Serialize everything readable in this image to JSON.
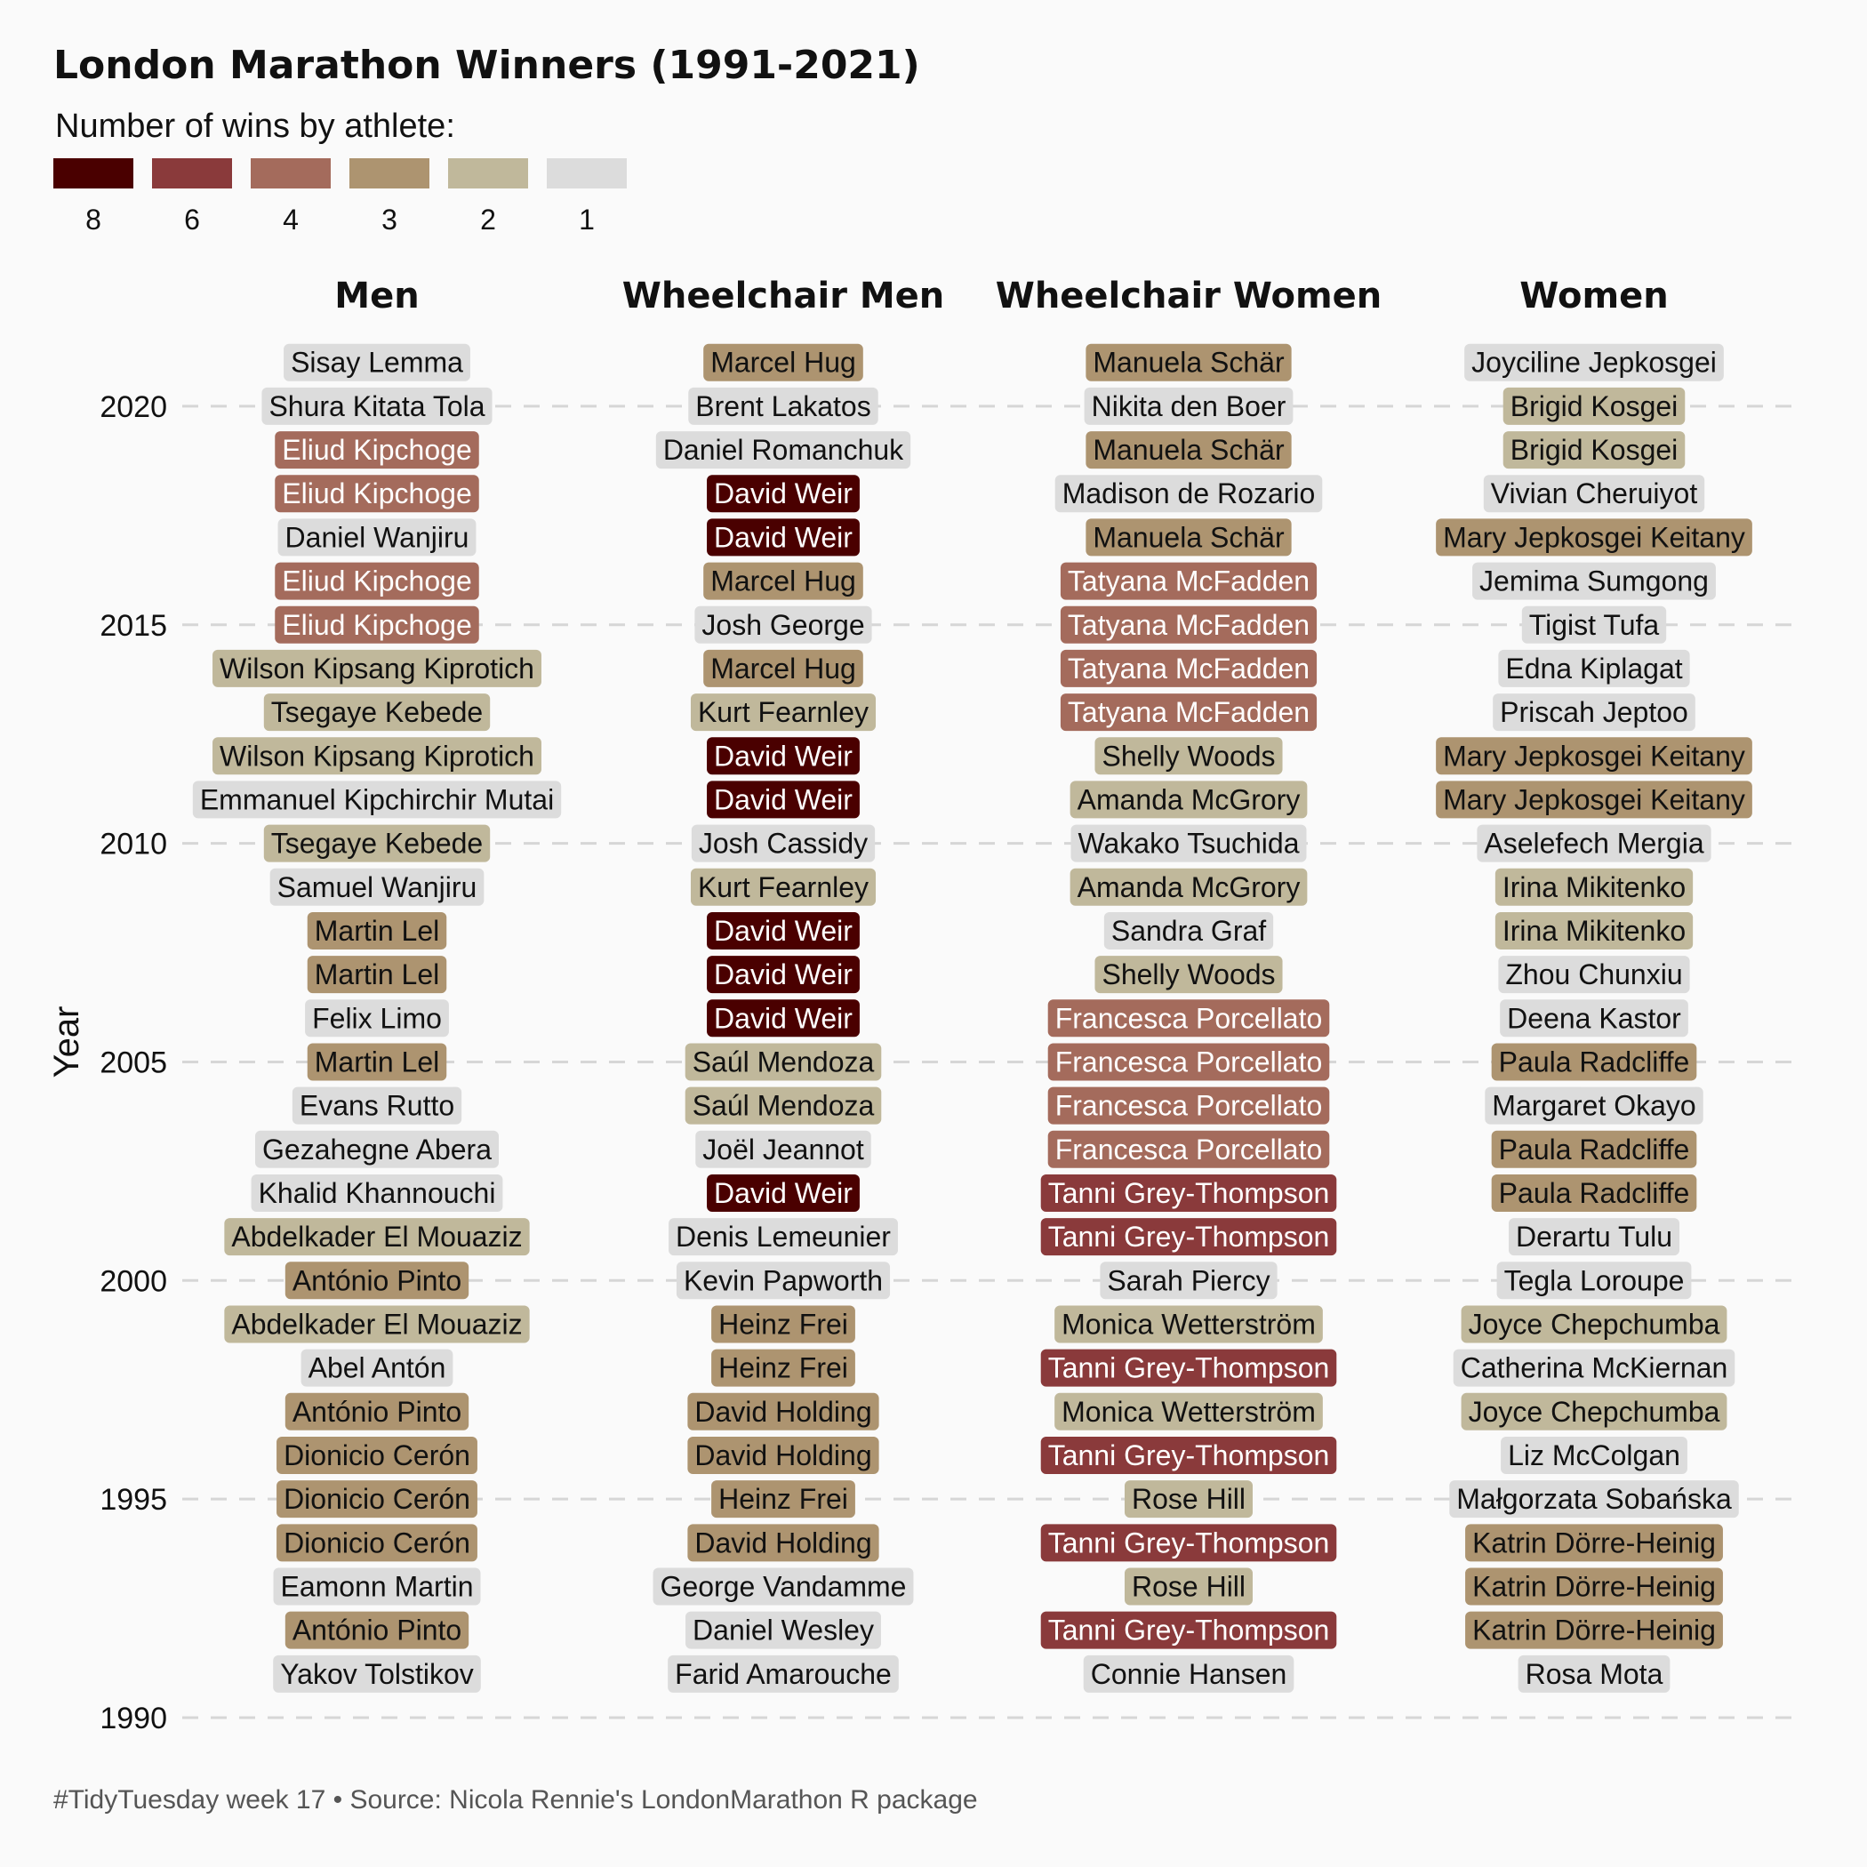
{
  "chart_data": {
    "type": "table",
    "title": "London Marathon Winners (1991-2021)",
    "legend_title": "Number of wins by athlete:",
    "legend": [
      {
        "label": "8",
        "color": "#4a0000"
      },
      {
        "label": "6",
        "color": "#8a3a3b"
      },
      {
        "label": "4",
        "color": "#a46b5c"
      },
      {
        "label": "3",
        "color": "#ad9470"
      },
      {
        "label": "2",
        "color": "#c0b89b"
      },
      {
        "label": "1",
        "color": "#dcdcdc"
      }
    ],
    "ylabel": "Year",
    "y_ticks": [
      "1990",
      "1995",
      "2000",
      "2005",
      "2010",
      "2015",
      "2020"
    ],
    "ylim": [
      1990,
      2021
    ],
    "caption": "#TidyTuesday week 17  •  Source: Nicola Rennie's LondonMarathon R package",
    "years": [
      2021,
      2020,
      2019,
      2018,
      2017,
      2016,
      2015,
      2014,
      2013,
      2012,
      2011,
      2010,
      2009,
      2008,
      2007,
      2006,
      2005,
      2004,
      2003,
      2002,
      2001,
      2000,
      1999,
      1998,
      1997,
      1996,
      1995,
      1994,
      1993,
      1992,
      1991
    ],
    "categories": [
      {
        "name": "Men",
        "winners": [
          {
            "name": "Sisay Lemma",
            "wins": 1
          },
          {
            "name": "Shura Kitata Tola",
            "wins": 1
          },
          {
            "name": "Eliud Kipchoge",
            "wins": 4
          },
          {
            "name": "Eliud Kipchoge",
            "wins": 4
          },
          {
            "name": "Daniel Wanjiru",
            "wins": 1
          },
          {
            "name": "Eliud Kipchoge",
            "wins": 4
          },
          {
            "name": "Eliud Kipchoge",
            "wins": 4
          },
          {
            "name": "Wilson Kipsang Kiprotich",
            "wins": 2
          },
          {
            "name": "Tsegaye Kebede",
            "wins": 2
          },
          {
            "name": "Wilson Kipsang Kiprotich",
            "wins": 2
          },
          {
            "name": "Emmanuel Kipchirchir Mutai",
            "wins": 1
          },
          {
            "name": "Tsegaye Kebede",
            "wins": 2
          },
          {
            "name": "Samuel Wanjiru",
            "wins": 1
          },
          {
            "name": "Martin Lel",
            "wins": 3
          },
          {
            "name": "Martin Lel",
            "wins": 3
          },
          {
            "name": "Felix Limo",
            "wins": 1
          },
          {
            "name": "Martin Lel",
            "wins": 3
          },
          {
            "name": "Evans Rutto",
            "wins": 1
          },
          {
            "name": "Gezahegne Abera",
            "wins": 1
          },
          {
            "name": "Khalid Khannouchi",
            "wins": 1
          },
          {
            "name": "Abdelkader El Mouaziz",
            "wins": 2
          },
          {
            "name": "António Pinto",
            "wins": 3
          },
          {
            "name": "Abdelkader El Mouaziz",
            "wins": 2
          },
          {
            "name": "Abel Antón",
            "wins": 1
          },
          {
            "name": "António Pinto",
            "wins": 3
          },
          {
            "name": "Dionicio Cerón",
            "wins": 3
          },
          {
            "name": "Dionicio Cerón",
            "wins": 3
          },
          {
            "name": "Dionicio Cerón",
            "wins": 3
          },
          {
            "name": "Eamonn Martin",
            "wins": 1
          },
          {
            "name": "António Pinto",
            "wins": 3
          },
          {
            "name": "Yakov Tolstikov",
            "wins": 1
          }
        ]
      },
      {
        "name": "Wheelchair Men",
        "winners": [
          {
            "name": "Marcel Hug",
            "wins": 3
          },
          {
            "name": "Brent Lakatos",
            "wins": 1
          },
          {
            "name": "Daniel Romanchuk",
            "wins": 1
          },
          {
            "name": "David Weir",
            "wins": 8
          },
          {
            "name": "David Weir",
            "wins": 8
          },
          {
            "name": "Marcel Hug",
            "wins": 3
          },
          {
            "name": "Josh George",
            "wins": 1
          },
          {
            "name": "Marcel Hug",
            "wins": 3
          },
          {
            "name": "Kurt Fearnley",
            "wins": 2
          },
          {
            "name": "David Weir",
            "wins": 8
          },
          {
            "name": "David Weir",
            "wins": 8
          },
          {
            "name": "Josh Cassidy",
            "wins": 1
          },
          {
            "name": "Kurt Fearnley",
            "wins": 2
          },
          {
            "name": "David Weir",
            "wins": 8
          },
          {
            "name": "David Weir",
            "wins": 8
          },
          {
            "name": "David Weir",
            "wins": 8
          },
          {
            "name": "Saúl Mendoza",
            "wins": 2
          },
          {
            "name": "Saúl Mendoza",
            "wins": 2
          },
          {
            "name": "Joël Jeannot",
            "wins": 1
          },
          {
            "name": "David Weir",
            "wins": 8
          },
          {
            "name": "Denis Lemeunier",
            "wins": 1
          },
          {
            "name": "Kevin Papworth",
            "wins": 1
          },
          {
            "name": "Heinz Frei",
            "wins": 3
          },
          {
            "name": "Heinz Frei",
            "wins": 3
          },
          {
            "name": "David Holding",
            "wins": 3
          },
          {
            "name": "David Holding",
            "wins": 3
          },
          {
            "name": "Heinz Frei",
            "wins": 3
          },
          {
            "name": "David Holding",
            "wins": 3
          },
          {
            "name": "George Vandamme",
            "wins": 1
          },
          {
            "name": "Daniel Wesley",
            "wins": 1
          },
          {
            "name": "Farid Amarouche",
            "wins": 1
          }
        ]
      },
      {
        "name": "Wheelchair Women",
        "winners": [
          {
            "name": "Manuela Schär",
            "wins": 3
          },
          {
            "name": "Nikita den Boer",
            "wins": 1
          },
          {
            "name": "Manuela Schär",
            "wins": 3
          },
          {
            "name": "Madison de Rozario",
            "wins": 1
          },
          {
            "name": "Manuela Schär",
            "wins": 3
          },
          {
            "name": "Tatyana McFadden",
            "wins": 4
          },
          {
            "name": "Tatyana McFadden",
            "wins": 4
          },
          {
            "name": "Tatyana McFadden",
            "wins": 4
          },
          {
            "name": "Tatyana McFadden",
            "wins": 4
          },
          {
            "name": "Shelly Woods",
            "wins": 2
          },
          {
            "name": "Amanda McGrory",
            "wins": 2
          },
          {
            "name": "Wakako Tsuchida",
            "wins": 1
          },
          {
            "name": "Amanda McGrory",
            "wins": 2
          },
          {
            "name": "Sandra Graf",
            "wins": 1
          },
          {
            "name": "Shelly Woods",
            "wins": 2
          },
          {
            "name": "Francesca Porcellato",
            "wins": 4
          },
          {
            "name": "Francesca Porcellato",
            "wins": 4
          },
          {
            "name": "Francesca Porcellato",
            "wins": 4
          },
          {
            "name": "Francesca Porcellato",
            "wins": 4
          },
          {
            "name": "Tanni Grey-Thompson",
            "wins": 6
          },
          {
            "name": "Tanni Grey-Thompson",
            "wins": 6
          },
          {
            "name": "Sarah Piercy",
            "wins": 1
          },
          {
            "name": "Monica Wetterström",
            "wins": 2
          },
          {
            "name": "Tanni Grey-Thompson",
            "wins": 6
          },
          {
            "name": "Monica Wetterström",
            "wins": 2
          },
          {
            "name": "Tanni Grey-Thompson",
            "wins": 6
          },
          {
            "name": "Rose Hill",
            "wins": 2
          },
          {
            "name": "Tanni Grey-Thompson",
            "wins": 6
          },
          {
            "name": "Rose Hill",
            "wins": 2
          },
          {
            "name": "Tanni Grey-Thompson",
            "wins": 6
          },
          {
            "name": "Connie Hansen",
            "wins": 1
          }
        ]
      },
      {
        "name": "Women",
        "winners": [
          {
            "name": "Joyciline Jepkosgei",
            "wins": 1
          },
          {
            "name": "Brigid Kosgei",
            "wins": 2
          },
          {
            "name": "Brigid Kosgei",
            "wins": 2
          },
          {
            "name": "Vivian Cheruiyot",
            "wins": 1
          },
          {
            "name": "Mary Jepkosgei Keitany",
            "wins": 3
          },
          {
            "name": "Jemima Sumgong",
            "wins": 1
          },
          {
            "name": "Tigist Tufa",
            "wins": 1
          },
          {
            "name": "Edna Kiplagat",
            "wins": 1
          },
          {
            "name": "Priscah Jeptoo",
            "wins": 1
          },
          {
            "name": "Mary Jepkosgei Keitany",
            "wins": 3
          },
          {
            "name": "Mary Jepkosgei Keitany",
            "wins": 3
          },
          {
            "name": "Aselefech Mergia",
            "wins": 1
          },
          {
            "name": "Irina Mikitenko",
            "wins": 2
          },
          {
            "name": "Irina Mikitenko",
            "wins": 2
          },
          {
            "name": "Zhou Chunxiu",
            "wins": 1
          },
          {
            "name": "Deena Kastor",
            "wins": 1
          },
          {
            "name": "Paula Radcliffe",
            "wins": 3
          },
          {
            "name": "Margaret Okayo",
            "wins": 1
          },
          {
            "name": "Paula Radcliffe",
            "wins": 3
          },
          {
            "name": "Paula Radcliffe",
            "wins": 3
          },
          {
            "name": "Derartu Tulu",
            "wins": 1
          },
          {
            "name": "Tegla Loroupe",
            "wins": 1
          },
          {
            "name": "Joyce Chepchumba",
            "wins": 2
          },
          {
            "name": "Catherina McKiernan",
            "wins": 1
          },
          {
            "name": "Joyce Chepchumba",
            "wins": 2
          },
          {
            "name": "Liz McColgan",
            "wins": 1
          },
          {
            "name": "Małgorzata Sobańska",
            "wins": 1
          },
          {
            "name": "Katrin Dörre-Heinig",
            "wins": 3
          },
          {
            "name": "Katrin Dörre-Heinig",
            "wins": 3
          },
          {
            "name": "Katrin Dörre-Heinig",
            "wins": 3
          },
          {
            "name": "Rosa Mota",
            "wins": 1
          }
        ]
      }
    ]
  }
}
